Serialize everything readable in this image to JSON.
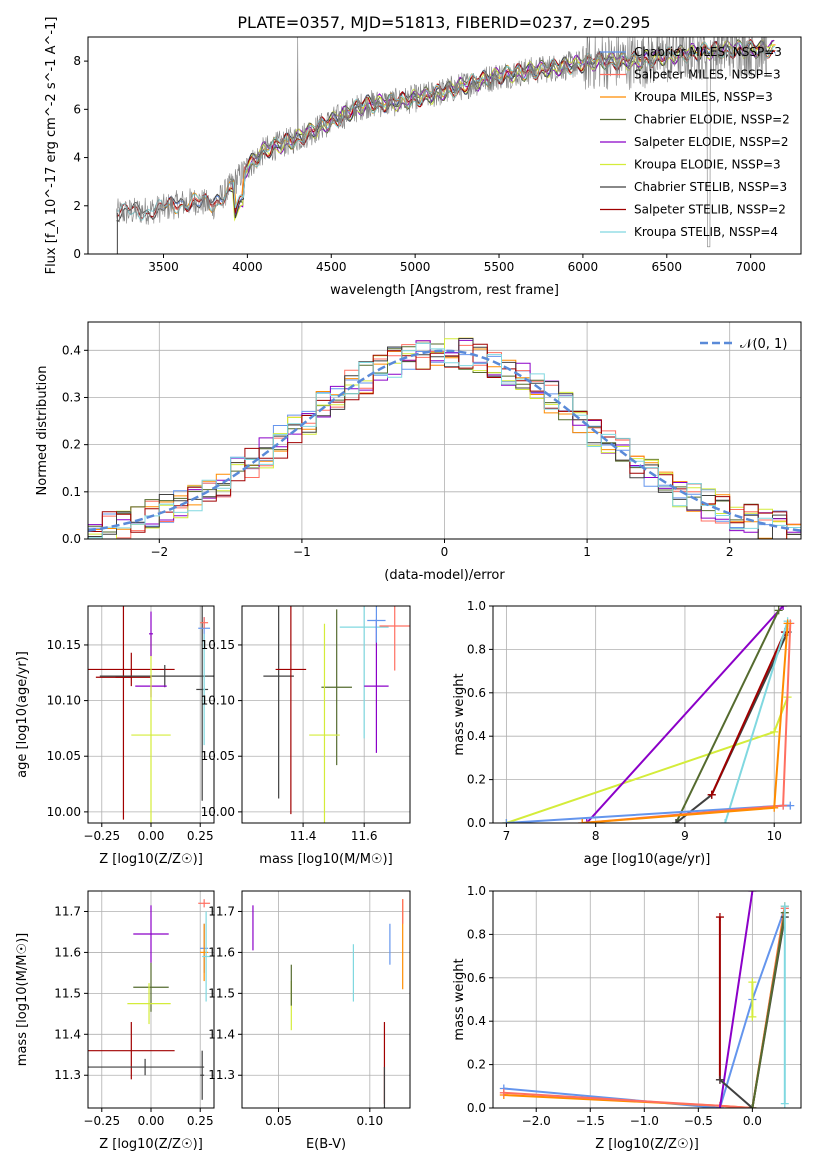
{
  "figure_title": "PLATE=0357, MJD=51813, FIBERID=0237, z=0.295",
  "colors": {
    "chabrier_miles": "#6495ed",
    "salpeter_miles": "#ff6f61",
    "kroupa_miles": "#ff8c00",
    "chabrier_elodie": "#556b2f",
    "salpeter_elodie": "#8b00c8",
    "kroupa_elodie": "#d4ec3a",
    "chabrier_stelib": "#404040",
    "salpeter_stelib": "#a00000",
    "kroupa_stelib": "#80d8e0",
    "gaussian": "#5a8ad8",
    "grid": "#b0b0b0"
  },
  "chart_data": [
    {
      "panel": "spectrum",
      "type": "line",
      "xlabel": "wavelength [Angstrom, rest frame]",
      "ylabel": "Flux [f_λ 10^-17 erg cm^-2 s^-1 A^-1]",
      "xlim": [
        3050,
        7300
      ],
      "ylim": [
        0,
        9
      ],
      "xticks": [
        "3500",
        "4000",
        "4500",
        "5000",
        "5500",
        "6000",
        "6500",
        "7000"
      ],
      "yticks": [
        "0",
        "2",
        "4",
        "6",
        "8"
      ],
      "legend_position": "right",
      "legend": [
        "Chabrier MILES, N_SSP=3",
        "Salpeter MILES, N_SSP=3",
        "Kroupa MILES, N_SSP=3",
        "Chabrier ELODIE, N_SSP=2",
        "Salpeter ELODIE, N_SSP=2",
        "Kroupa ELODIE, N_SSP=3",
        "Chabrier STELIB, N_SSP=3",
        "Salpeter STELIB, N_SSP=2",
        "Kroupa STELIB, N_SSP=4"
      ],
      "continuum": {
        "x": [
          3220,
          3400,
          3500,
          3600,
          3700,
          3800,
          3900,
          4000,
          4100,
          4300,
          4500,
          4700,
          4900,
          5100,
          5300,
          5500,
          5700,
          5900,
          6100,
          6300,
          6500,
          6700,
          6900,
          7100
        ],
        "y": [
          1.7,
          1.8,
          1.9,
          2.1,
          2.2,
          2.0,
          2.8,
          3.6,
          4.3,
          4.8,
          5.5,
          6.2,
          6.3,
          6.6,
          7.0,
          7.4,
          7.6,
          7.8,
          8.0,
          8.0,
          8.2,
          8.4,
          8.5,
          8.5
        ]
      }
    },
    {
      "panel": "residual_histogram",
      "type": "line",
      "xlabel": "(data-model)/error",
      "ylabel": "Normed distribution",
      "xlim": [
        -2.5,
        2.5
      ],
      "ylim": [
        0,
        0.46
      ],
      "xticks": [
        "−2",
        "−1",
        "0",
        "1",
        "2"
      ],
      "yticks": [
        "0.0",
        "0.1",
        "0.2",
        "0.3",
        "0.4"
      ],
      "legend": [
        "𝒩(0, 1)"
      ],
      "legend_position": "top-right"
    },
    {
      "panel": "age_vs_Z",
      "type": "scatter",
      "xlabel": "Z [log10(Z/Z☉)]",
      "ylabel": "age  [log10(age/yr)]",
      "xlim": [
        -0.32,
        0.32
      ],
      "ylim": [
        9.99,
        10.185
      ],
      "xticks": [
        "−0.25",
        "0.00",
        "0.25"
      ],
      "yticks": [
        "10.00",
        "10.05",
        "10.10",
        "10.15"
      ],
      "points": [
        {
          "x": -0.1,
          "y": 10.128,
          "xerr": 0.22,
          "yerr": 0.015,
          "c": "salpeter_stelib"
        },
        {
          "x": -0.14,
          "y": 10.121,
          "xerr": 0.04,
          "yerr": 0.02,
          "c": "salpeter_stelib",
          "xerr2": 0.14,
          "yerr2": 0.128
        },
        {
          "x": 0.07,
          "y": 10.122,
          "xerr": 0.33,
          "yerr": 0.01,
          "c": "chabrier_stelib"
        },
        {
          "x": 0.26,
          "y": 10.11,
          "xerr": 0.03,
          "yerr": 0.1,
          "c": "chabrier_stelib"
        },
        {
          "x": 0.0,
          "y": 10.113,
          "xerr": 0.08,
          "yerr": 0.01,
          "c": "salpeter_elodie"
        },
        {
          "x": 0.0,
          "y": 10.069,
          "xerr": 0.1,
          "yerr": 0.09,
          "c": "kroupa_elodie"
        },
        {
          "x": 0.0,
          "y": 10.16,
          "xerr": 0.01,
          "yerr": 0.02,
          "c": "salpeter_elodie"
        },
        {
          "x": 0.27,
          "y": 10.165,
          "xerr": 0.03,
          "yerr": 0.01,
          "c": "chabrier_miles"
        },
        {
          "x": 0.27,
          "y": 10.17,
          "xerr": 0.02,
          "yerr": 0.005,
          "c": "salpeter_miles"
        },
        {
          "x": 0.27,
          "y": 10.11,
          "xerr": 0.005,
          "yerr": 0.05,
          "c": "kroupa_stelib"
        }
      ]
    },
    {
      "panel": "age_vs_mass",
      "type": "scatter",
      "xlabel": "mass [log10(M/M☉)]",
      "ylabel": "",
      "xlim": [
        11.2,
        11.75
      ],
      "ylim": [
        9.99,
        10.185
      ],
      "xticks": [
        "11.4",
        "11.6"
      ],
      "yticks": [
        "10.00",
        "10.05",
        "10.10",
        "10.15"
      ],
      "points": [
        {
          "x": 11.32,
          "y": 10.122,
          "xerr": 0.05,
          "yerr": 0.11,
          "c": "chabrier_stelib"
        },
        {
          "x": 11.36,
          "y": 10.128,
          "xerr": 0.05,
          "yerr": 0.13,
          "c": "salpeter_stelib"
        },
        {
          "x": 11.51,
          "y": 10.112,
          "xerr": 0.05,
          "yerr": 0.07,
          "c": "chabrier_elodie"
        },
        {
          "x": 11.47,
          "y": 10.069,
          "xerr": 0.05,
          "yerr": 0.1,
          "c": "kroupa_elodie"
        },
        {
          "x": 11.6,
          "y": 10.166,
          "xerr": 0.08,
          "yerr": 0.1,
          "c": "kroupa_stelib"
        },
        {
          "x": 11.64,
          "y": 10.113,
          "xerr": 0.04,
          "yerr": 0.06,
          "c": "salpeter_elodie"
        },
        {
          "x": 11.64,
          "y": 10.172,
          "xerr": 0.03,
          "yerr": 0.02,
          "c": "chabrier_miles"
        },
        {
          "x": 11.7,
          "y": 10.167,
          "xerr": 0.05,
          "yerr": 0.04,
          "c": "salpeter_miles"
        }
      ]
    },
    {
      "panel": "mass_weight_vs_age",
      "type": "line",
      "xlabel": "age  [log10(age/yr)]",
      "ylabel": "mass weight",
      "xlim": [
        6.85,
        10.3
      ],
      "ylim": [
        0,
        1
      ],
      "xticks": [
        "7",
        "8",
        "9",
        "10"
      ],
      "yticks": [
        "0.0",
        "0.2",
        "0.4",
        "0.6",
        "0.8",
        "1.0"
      ],
      "series": [
        {
          "c": "kroupa_elodie",
          "x": [
            7.0,
            10.0,
            10.15
          ],
          "y": [
            0.0,
            0.42,
            0.58
          ]
        },
        {
          "c": "salpeter_elodie",
          "x": [
            7.9,
            10.1
          ],
          "y": [
            0.0,
            1.0
          ]
        },
        {
          "c": "chabrier_elodie",
          "x": [
            8.9,
            10.05
          ],
          "y": [
            0.0,
            0.98
          ]
        },
        {
          "c": "chabrier_stelib",
          "x": [
            8.9,
            9.3,
            10.15
          ],
          "y": [
            0.0,
            0.13,
            0.88
          ]
        },
        {
          "c": "salpeter_stelib",
          "x": [
            9.3,
            10.12
          ],
          "y": [
            0.13,
            0.88
          ]
        },
        {
          "c": "kroupa_stelib",
          "x": [
            9.45,
            10.15
          ],
          "y": [
            0.0,
            0.93
          ]
        },
        {
          "c": "chabrier_miles",
          "x": [
            7.0,
            10.1,
            10.18
          ],
          "y": [
            0.0,
            0.08,
            0.08
          ]
        },
        {
          "c": "salpeter_miles",
          "x": [
            7.85,
            10.1,
            10.18
          ],
          "y": [
            0.0,
            0.08,
            0.92
          ]
        },
        {
          "c": "kroupa_miles",
          "x": [
            7.85,
            10.0,
            10.15
          ],
          "y": [
            0.0,
            0.07,
            0.92
          ]
        }
      ]
    },
    {
      "panel": "mass_vs_Z",
      "type": "scatter",
      "xlabel": "Z [log10(Z/Z☉)]",
      "ylabel": "mass [log10(M/M☉)]",
      "xlim": [
        -0.32,
        0.32
      ],
      "ylim": [
        11.22,
        11.75
      ],
      "xticks": [
        "−0.25",
        "0.00",
        "0.25"
      ],
      "yticks": [
        "11.3",
        "11.4",
        "11.5",
        "11.6",
        "11.7"
      ],
      "points": [
        {
          "x": -0.1,
          "y": 11.36,
          "xerr": 0.22,
          "yerr": 0.07,
          "c": "salpeter_stelib"
        },
        {
          "x": -0.03,
          "y": 11.32,
          "xerr": 0.3,
          "yerr": 0.02,
          "c": "chabrier_stelib"
        },
        {
          "x": 0.26,
          "y": 11.3,
          "xerr": 0.01,
          "yerr": 0.06,
          "c": "chabrier_stelib"
        },
        {
          "x": 0.0,
          "y": 11.515,
          "xerr": 0.09,
          "yerr": 0.06,
          "c": "chabrier_elodie"
        },
        {
          "x": -0.01,
          "y": 11.475,
          "xerr": 0.11,
          "yerr": 0.05,
          "c": "kroupa_elodie"
        },
        {
          "x": 0.0,
          "y": 11.645,
          "xerr": 0.09,
          "yerr": 0.07,
          "c": "salpeter_elodie"
        },
        {
          "x": 0.27,
          "y": 11.72,
          "xerr": 0.03,
          "yerr": 0.01,
          "c": "salpeter_miles"
        },
        {
          "x": 0.27,
          "y": 11.61,
          "xerr": 0.02,
          "yerr": 0.06,
          "c": "chabrier_miles"
        },
        {
          "x": 0.27,
          "y": 11.6,
          "xerr": 0.02,
          "yerr": 0.07,
          "c": "kroupa_miles"
        },
        {
          "x": 0.28,
          "y": 11.59,
          "xerr": 0.02,
          "yerr": 0.11,
          "c": "kroupa_stelib"
        }
      ]
    },
    {
      "panel": "mass_vs_ebv",
      "type": "scatter",
      "xlabel": "E(B-V)",
      "ylabel": "",
      "xlim": [
        0.03,
        0.122
      ],
      "ylim": [
        11.22,
        11.75
      ],
      "xticks": [
        "0.05",
        "0.10"
      ],
      "yticks": [
        "11.3",
        "11.4",
        "11.5",
        "11.6",
        "11.7"
      ],
      "points": [
        {
          "x": 0.036,
          "y": 11.66,
          "yerr": 0.055,
          "c": "salpeter_elodie"
        },
        {
          "x": 0.057,
          "y": 11.47,
          "yerr": 0.06,
          "c": "kroupa_elodie"
        },
        {
          "x": 0.057,
          "y": 11.52,
          "yerr": 0.05,
          "c": "chabrier_elodie"
        },
        {
          "x": 0.091,
          "y": 11.55,
          "yerr": 0.07,
          "c": "kroupa_stelib"
        },
        {
          "x": 0.108,
          "y": 11.33,
          "yerr": 0.1,
          "c": "salpeter_stelib"
        },
        {
          "x": 0.108,
          "y": 11.27,
          "yerr": 0.05,
          "c": "chabrier_stelib"
        },
        {
          "x": 0.111,
          "y": 11.62,
          "yerr": 0.05,
          "c": "chabrier_miles"
        },
        {
          "x": 0.118,
          "y": 11.62,
          "yerr": 0.11,
          "c": "kroupa_miles"
        },
        {
          "x": 0.118,
          "y": 11.7,
          "yerr": 0.03,
          "c": "salpeter_miles"
        }
      ]
    },
    {
      "panel": "mass_weight_vs_Z",
      "type": "line",
      "xlabel": "Z [log10(Z/Z☉)]",
      "ylabel": "mass weight",
      "xlim": [
        -2.4,
        0.45
      ],
      "ylim": [
        0,
        1
      ],
      "xticks": [
        "−2.0",
        "−1.5",
        "−1.0",
        "−0.5",
        "0.0"
      ],
      "yticks": [
        "0.0",
        "0.2",
        "0.4",
        "0.6",
        "0.8",
        "1.0"
      ],
      "series": [
        {
          "c": "chabrier_miles",
          "x": [
            -2.3,
            -0.3,
            0.0,
            0.3
          ],
          "y": [
            0.09,
            0.0,
            0.5,
            0.92
          ]
        },
        {
          "c": "kroupa_miles",
          "x": [
            -2.3,
            -0.3,
            0.0,
            0.3
          ],
          "y": [
            0.06,
            0.01,
            0.0,
            0.93
          ]
        },
        {
          "c": "salpeter_miles",
          "x": [
            -2.3,
            -0.3,
            0.0,
            0.3
          ],
          "y": [
            0.07,
            0.01,
            0.0,
            0.92
          ]
        },
        {
          "c": "salpeter_stelib",
          "x": [
            -0.3,
            -0.3
          ],
          "y": [
            0.13,
            0.88
          ]
        },
        {
          "c": "salpeter_elodie",
          "x": [
            -0.3,
            0.0
          ],
          "y": [
            0.0,
            1.0
          ]
        },
        {
          "c": "kroupa_elodie",
          "x": [
            0.0,
            0.0
          ],
          "y": [
            0.42,
            0.58
          ]
        },
        {
          "c": "chabrier_stelib",
          "x": [
            -0.3,
            0.0,
            0.3
          ],
          "y": [
            0.13,
            0.0,
            0.88
          ]
        },
        {
          "c": "chabrier_elodie",
          "x": [
            0.0,
            0.3
          ],
          "y": [
            0.0,
            0.9
          ]
        },
        {
          "c": "kroupa_stelib",
          "x": [
            0.3,
            0.3
          ],
          "y": [
            0.02,
            0.93
          ]
        }
      ]
    }
  ]
}
